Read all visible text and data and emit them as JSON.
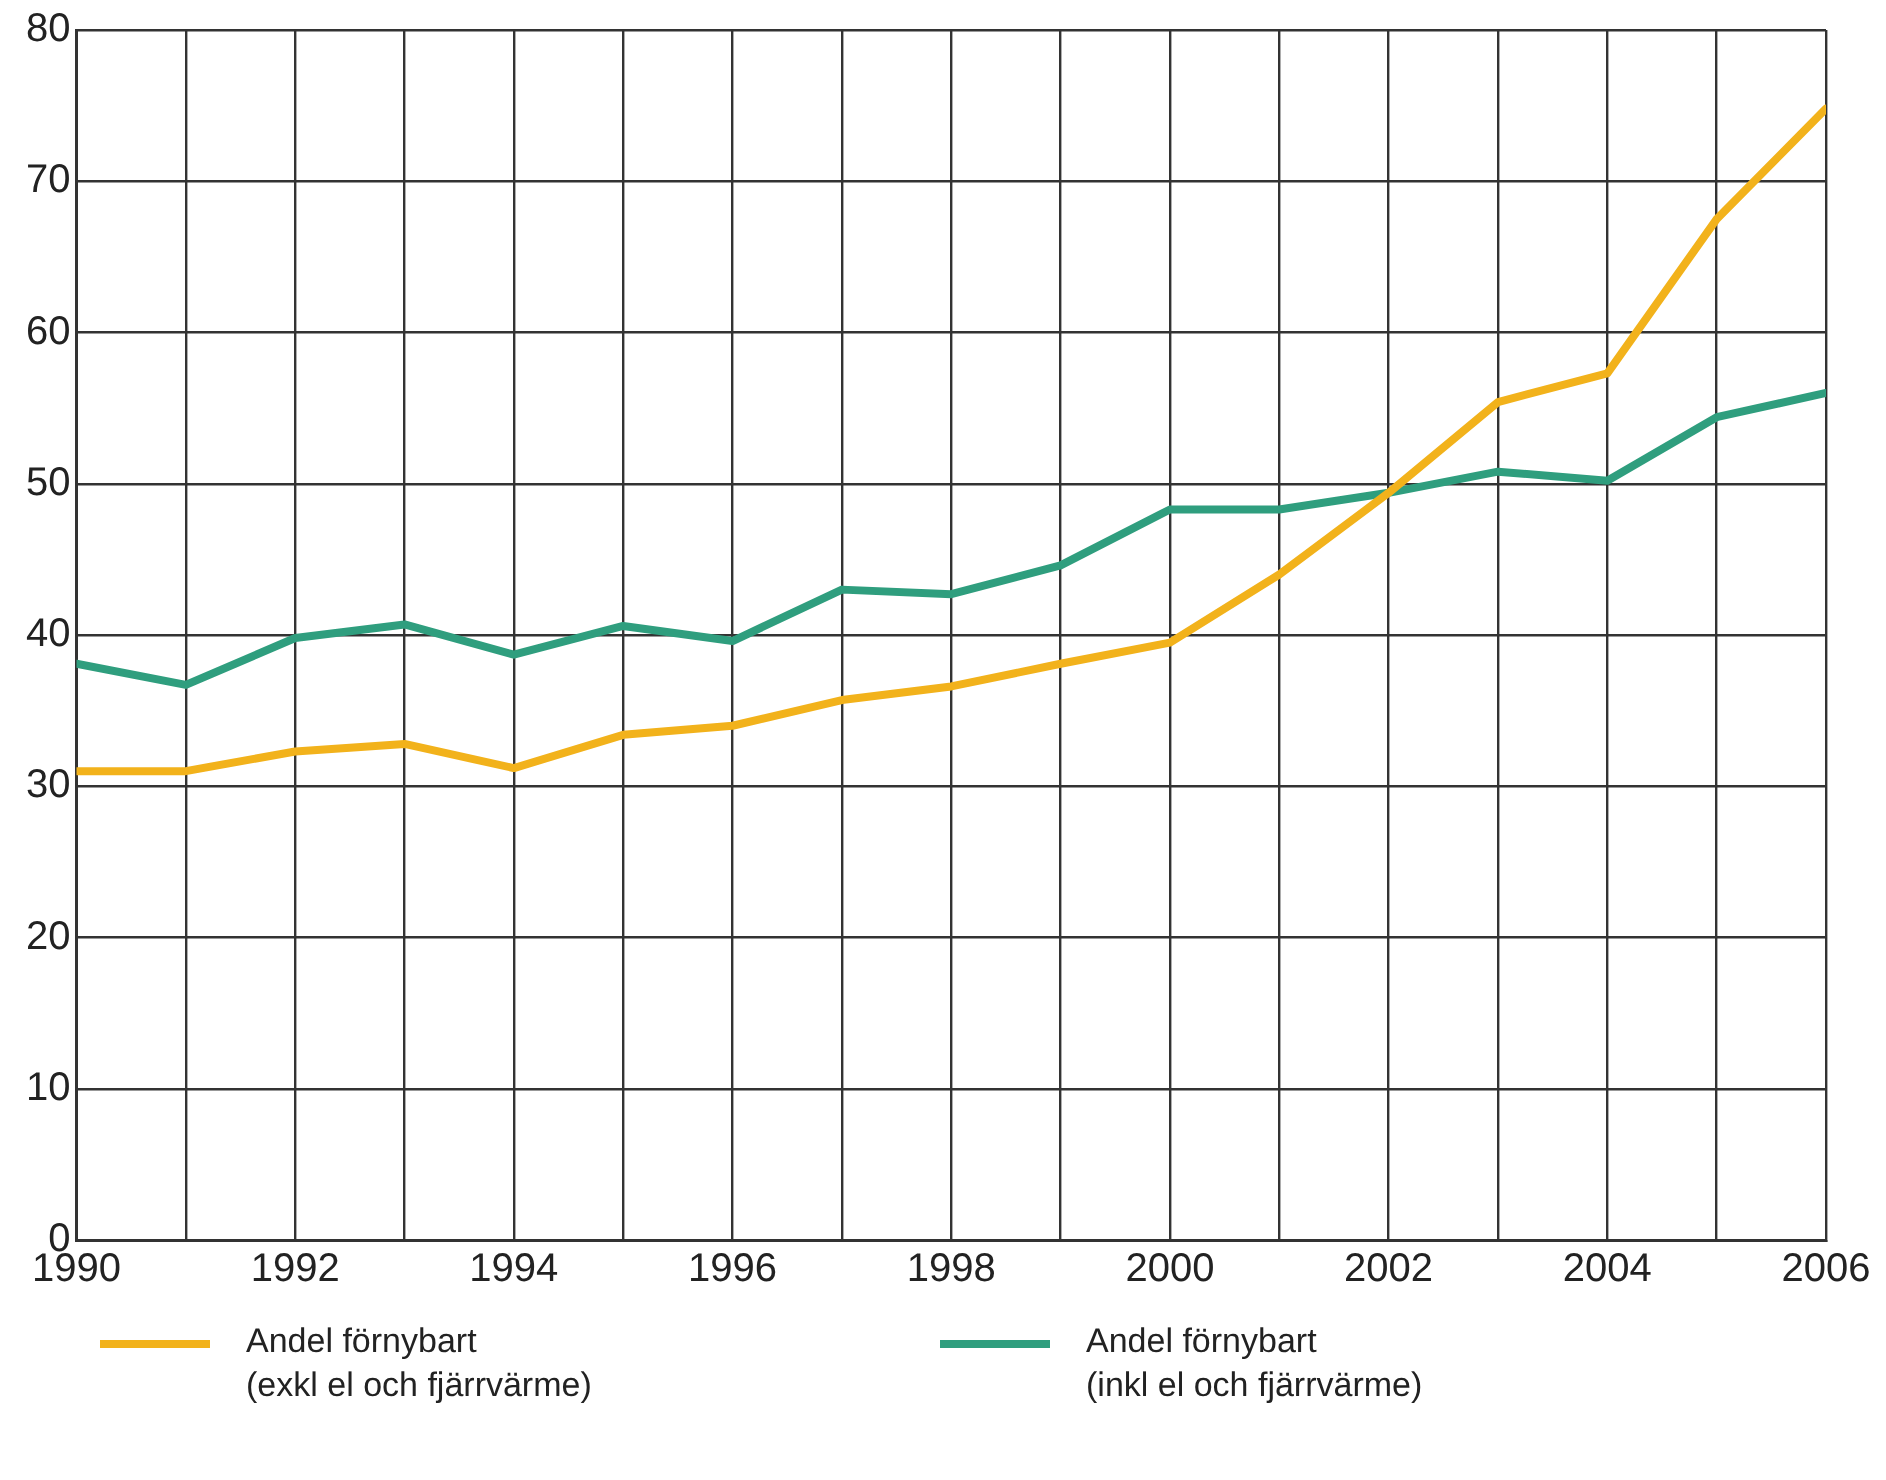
{
  "chart_data": {
    "type": "line",
    "x": [
      1990,
      1991,
      1992,
      1993,
      1994,
      1995,
      1996,
      1997,
      1998,
      1999,
      2000,
      2001,
      2002,
      2003,
      2004,
      2005,
      2006
    ],
    "series": [
      {
        "name": "Andel förnybart\n(exkl el och fjärrvärme)",
        "color": "#f2b21b",
        "values": [
          31,
          31,
          32.3,
          32.8,
          31.2,
          33.4,
          34,
          35.7,
          36.6,
          38.1,
          39.5,
          44,
          49.4,
          55.4,
          57.3,
          67.5,
          74.8
        ]
      },
      {
        "name": "Andel förnybart\n(inkl el och fjärrvärme)",
        "color": "#2f9e7e",
        "values": [
          38.1,
          36.7,
          39.8,
          40.7,
          38.7,
          40.6,
          39.6,
          43,
          42.7,
          44.6,
          48.3,
          48.3,
          49.4,
          50.8,
          50.2,
          54.4,
          56
        ]
      }
    ],
    "xlim": [
      1990,
      2006
    ],
    "xticks": [
      1990,
      {
        "value": 1991,
        "label": null
      },
      1992,
      {
        "value": 1993,
        "label": null
      },
      1994,
      {
        "value": 1995,
        "label": null
      },
      1996,
      {
        "value": 1997,
        "label": null
      },
      1998,
      {
        "value": 1999,
        "label": null
      },
      2000,
      {
        "value": 2001,
        "label": null
      },
      2002,
      {
        "value": 2003,
        "label": null
      },
      2004,
      {
        "value": 2005,
        "label": null
      },
      2006
    ],
    "ylim": [
      0,
      80
    ],
    "yticks": [
      0,
      10,
      20,
      30,
      40,
      50,
      60,
      70,
      80
    ],
    "grid": true,
    "legend": "bottom",
    "marker": "none",
    "line_style": "solid"
  }
}
